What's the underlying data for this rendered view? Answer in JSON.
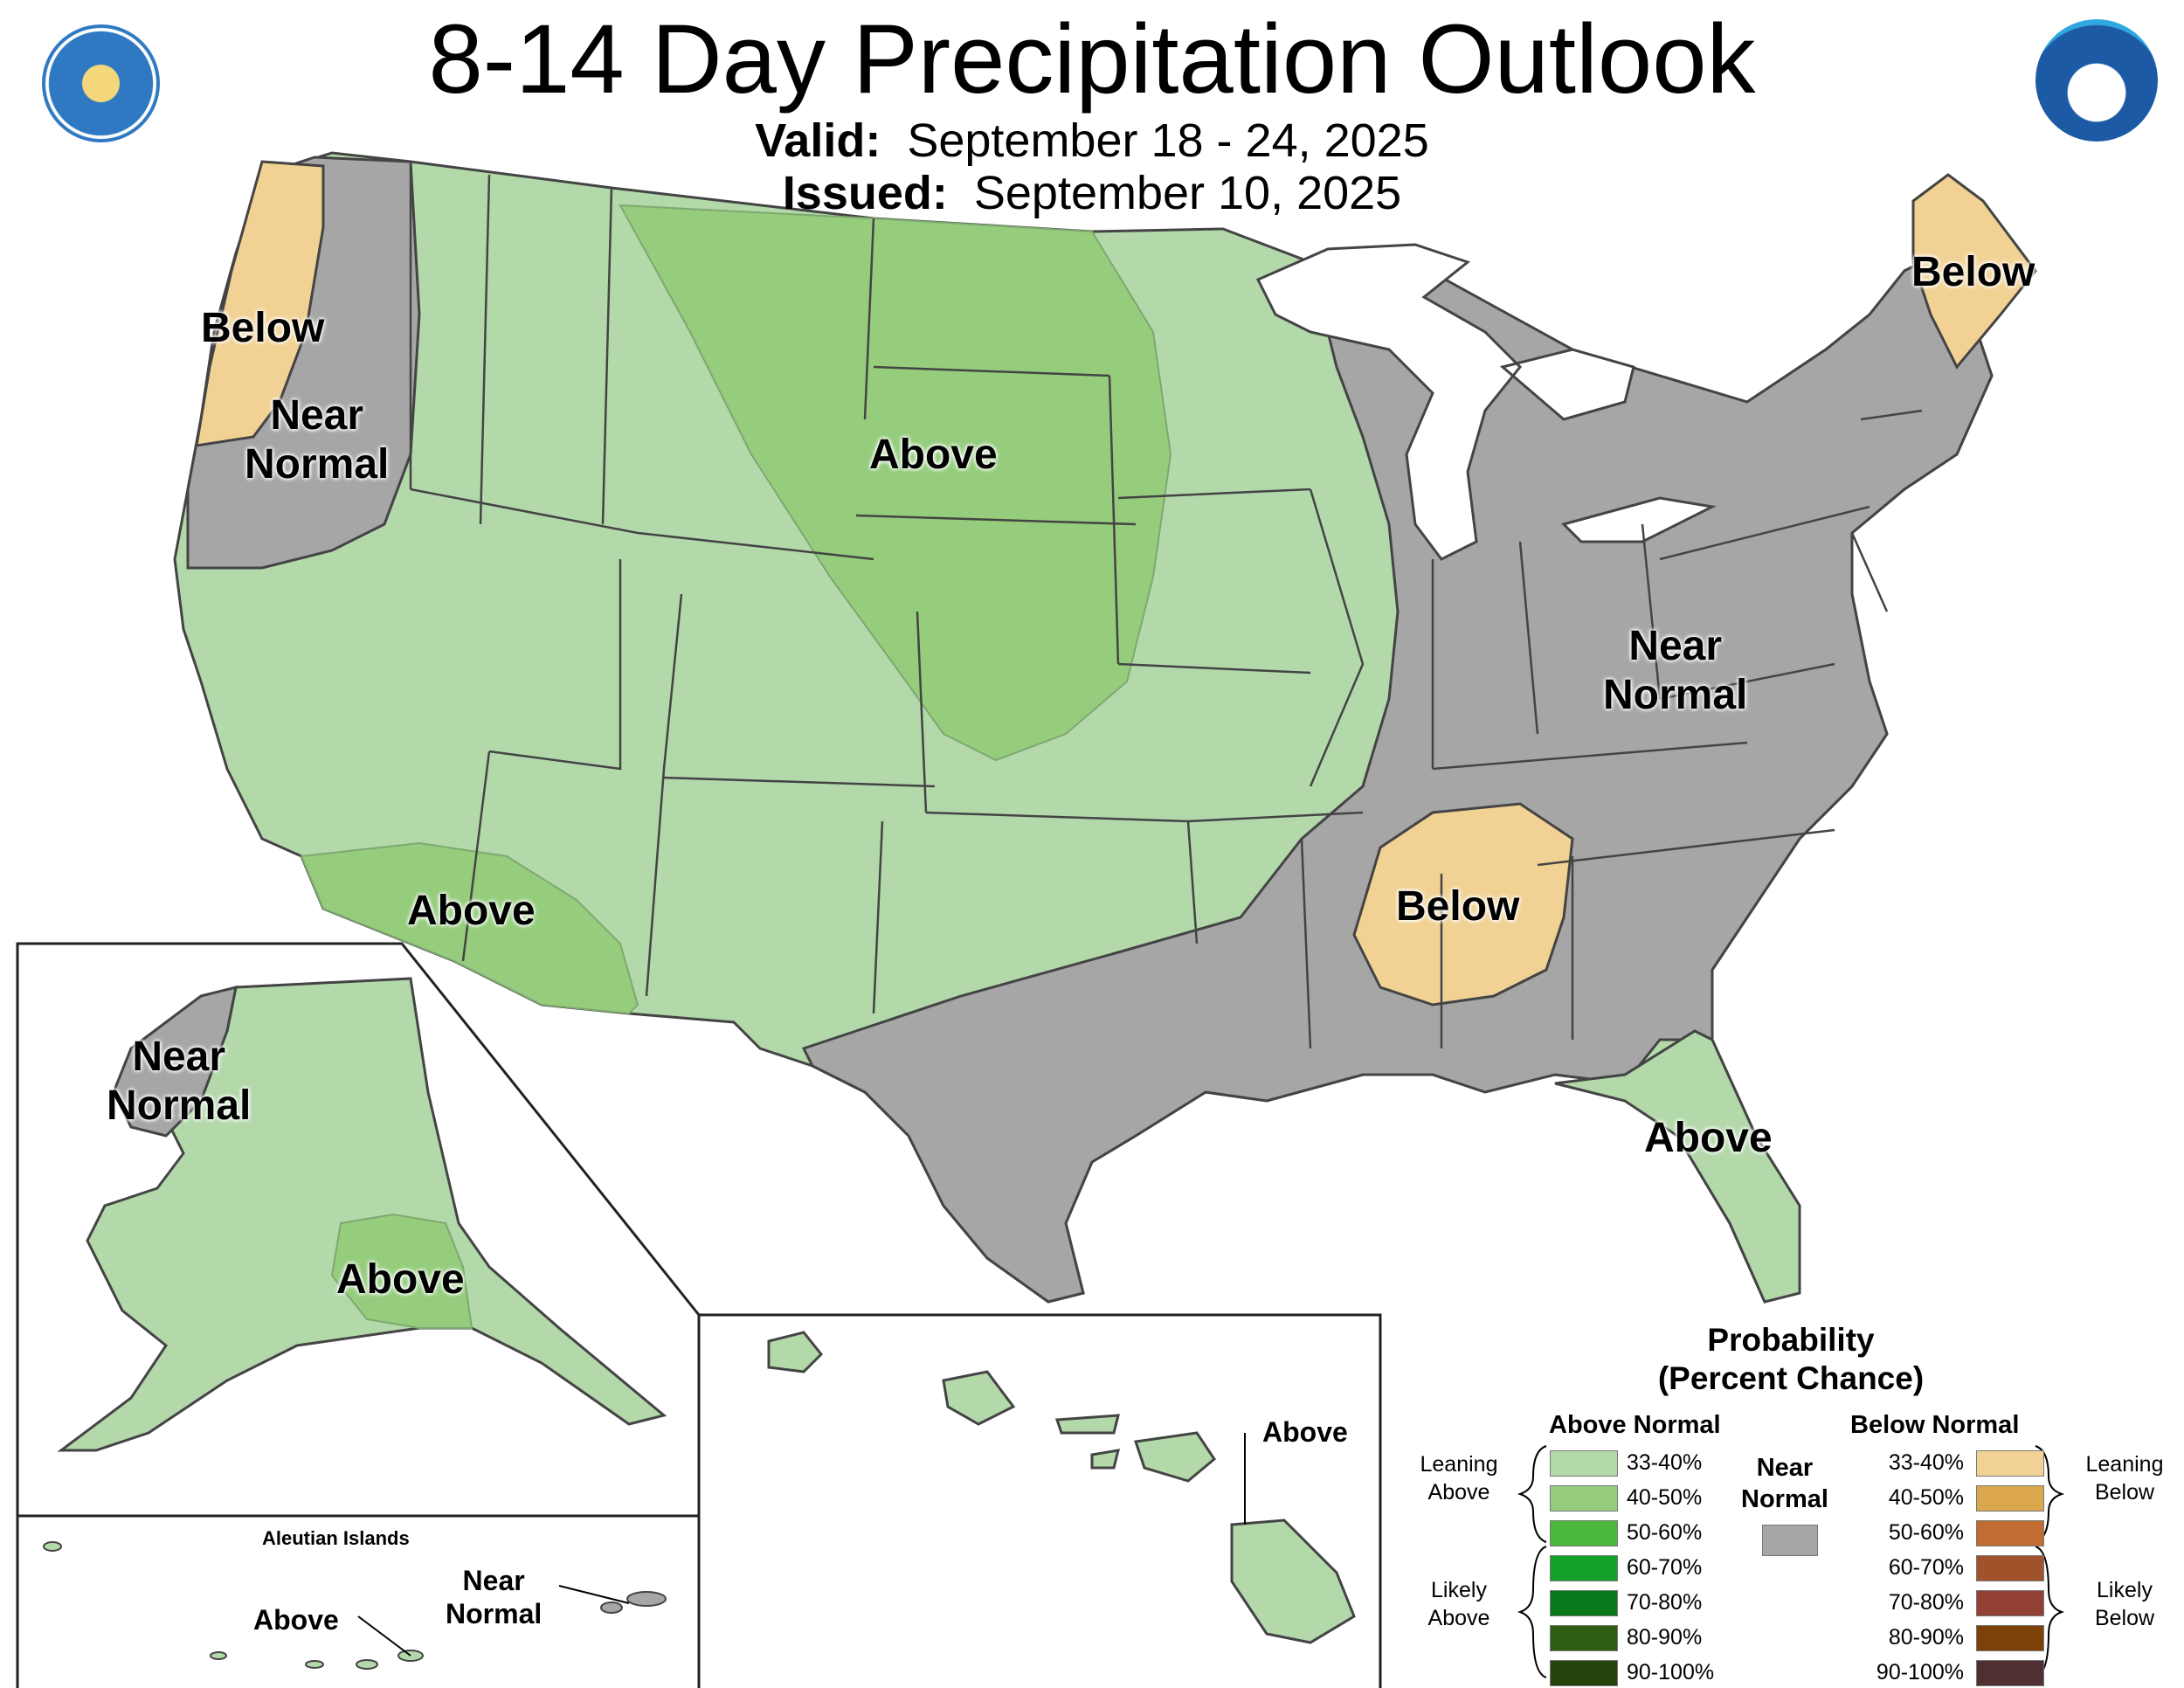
{
  "title": "8-14 Day Precipitation Outlook",
  "valid": {
    "label": "Valid:",
    "value": "September 18 - 24, 2025"
  },
  "issued": {
    "label": "Issued:",
    "value": "September 10, 2025"
  },
  "regions": {
    "west_coast_below": "Below",
    "nw_near_normal": "Near\nNormal",
    "plains_above": "Above",
    "southwest_above": "Above",
    "maine_below": "Below",
    "east_near_normal": "Near\nNormal",
    "southeast_below": "Below",
    "florida_above": "Above",
    "alaska_near_normal": "Near\nNormal",
    "alaska_above": "Above",
    "aleutian_title": "Aleutian Islands",
    "aleutian_above": "Above",
    "aleutian_near_normal": "Near\nNormal",
    "hawaii_above": "Above"
  },
  "legend": {
    "title": "Probability\n(Percent Chance)",
    "above_header": "Above Normal",
    "below_header": "Below Normal",
    "near_normal": "Near\nNormal",
    "leaning_above": "Leaning\nAbove",
    "likely_above": "Likely\nAbove",
    "leaning_below": "Leaning\nBelow",
    "likely_below": "Likely\nBelow",
    "above_rows": [
      {
        "range": "33-40%",
        "color": "#b3d9ab"
      },
      {
        "range": "40-50%",
        "color": "#95cd7d"
      },
      {
        "range": "50-60%",
        "color": "#49b83d"
      },
      {
        "range": "60-70%",
        "color": "#12a02a"
      },
      {
        "range": "70-80%",
        "color": "#087a1c"
      },
      {
        "range": "80-90%",
        "color": "#2d5e12"
      },
      {
        "range": "90-100%",
        "color": "#24430c"
      }
    ],
    "below_rows": [
      {
        "range": "33-40%",
        "color": "#f2d294"
      },
      {
        "range": "40-50%",
        "color": "#dba74e"
      },
      {
        "range": "50-60%",
        "color": "#c06c33"
      },
      {
        "range": "60-70%",
        "color": "#a0532b"
      },
      {
        "range": "70-80%",
        "color": "#923f34"
      },
      {
        "range": "80-90%",
        "color": "#7b4108"
      },
      {
        "range": "90-100%",
        "color": "#4f2f31"
      }
    ],
    "near_color": "#a6a6a6"
  },
  "colors": {
    "near_gray": "#a6a6a6",
    "lean_above": "#b3d9ab",
    "above_40": "#95cd7d",
    "lean_below": "#f2d294",
    "border": "#444444"
  }
}
